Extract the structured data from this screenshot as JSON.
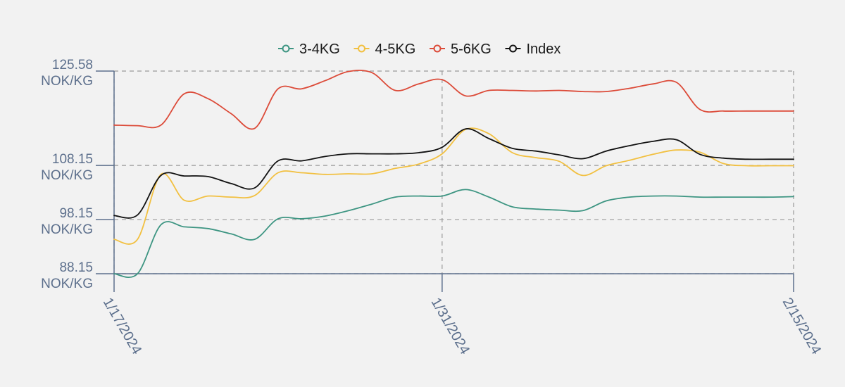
{
  "chart_data": {
    "type": "line",
    "legend_position": "top-center",
    "grid": true,
    "x": [
      "1/17/2024",
      "1/18/2024",
      "1/19/2024",
      "1/20/2024",
      "1/21/2024",
      "1/22/2024",
      "1/23/2024",
      "1/24/2024",
      "1/25/2024",
      "1/26/2024",
      "1/27/2024",
      "1/28/2024",
      "1/29/2024",
      "1/30/2024",
      "1/31/2024",
      "2/1/2024",
      "2/2/2024",
      "2/3/2024",
      "2/4/2024",
      "2/5/2024",
      "2/6/2024",
      "2/7/2024",
      "2/8/2024",
      "2/9/2024",
      "2/10/2024",
      "2/11/2024",
      "2/12/2024",
      "2/13/2024",
      "2/14/2024",
      "2/15/2024"
    ],
    "x_ticks": [
      "1/17/2024",
      "1/31/2024",
      "2/15/2024"
    ],
    "y_ticks": [
      {
        "value": 88.15,
        "label": "88.15",
        "unit": "NOK/KG"
      },
      {
        "value": 98.15,
        "label": "98.15",
        "unit": "NOK/KG"
      },
      {
        "value": 108.15,
        "label": "108.15",
        "unit": "NOK/KG"
      },
      {
        "value": 125.58,
        "label": "125.58",
        "unit": "NOK/KG"
      }
    ],
    "ylim": [
      88.15,
      125.58
    ],
    "series": [
      {
        "name": "3-4KG",
        "color": "#3d9582",
        "values": [
          88.15,
          88.15,
          97.2,
          96.8,
          96.5,
          95.5,
          94.5,
          98.3,
          98.3,
          98.8,
          99.8,
          101.0,
          102.3,
          102.5,
          102.5,
          103.7,
          102.3,
          100.5,
          100.1,
          99.9,
          99.8,
          101.6,
          102.3,
          102.5,
          102.5,
          102.3,
          102.3,
          102.3,
          102.3,
          102.4
        ]
      },
      {
        "name": "4-5KG",
        "color": "#f2c040",
        "values": [
          94.5,
          94.5,
          106.5,
          101.7,
          102.5,
          102.3,
          102.6,
          106.8,
          106.8,
          106.5,
          106.6,
          106.6,
          107.6,
          108.4,
          110.3,
          114.8,
          114.0,
          110.5,
          109.6,
          108.9,
          106.3,
          108.1,
          109.1,
          110.2,
          111.0,
          110.6,
          108.5,
          108.1,
          108.1,
          108.1
        ]
      },
      {
        "name": "5-6KG",
        "color": "#dc4b39",
        "values": [
          115.6,
          115.5,
          115.6,
          121.4,
          120.5,
          117.7,
          115.0,
          122.3,
          122.3,
          123.8,
          125.5,
          125.3,
          122.0,
          123.2,
          124.0,
          121.0,
          122.0,
          122.0,
          121.9,
          122.0,
          121.8,
          121.8,
          122.4,
          123.2,
          123.5,
          118.5,
          118.2,
          118.2,
          118.2,
          118.2
        ]
      },
      {
        "name": "Index",
        "color": "#111111",
        "values": [
          98.9,
          99.0,
          106.3,
          106.2,
          106.1,
          104.8,
          104.0,
          109.0,
          109.0,
          109.8,
          110.3,
          110.3,
          110.3,
          110.5,
          111.5,
          114.9,
          113.1,
          111.3,
          110.8,
          110.1,
          109.4,
          110.8,
          111.8,
          112.6,
          112.9,
          110.2,
          109.5,
          109.3,
          109.3,
          109.3
        ]
      }
    ]
  }
}
